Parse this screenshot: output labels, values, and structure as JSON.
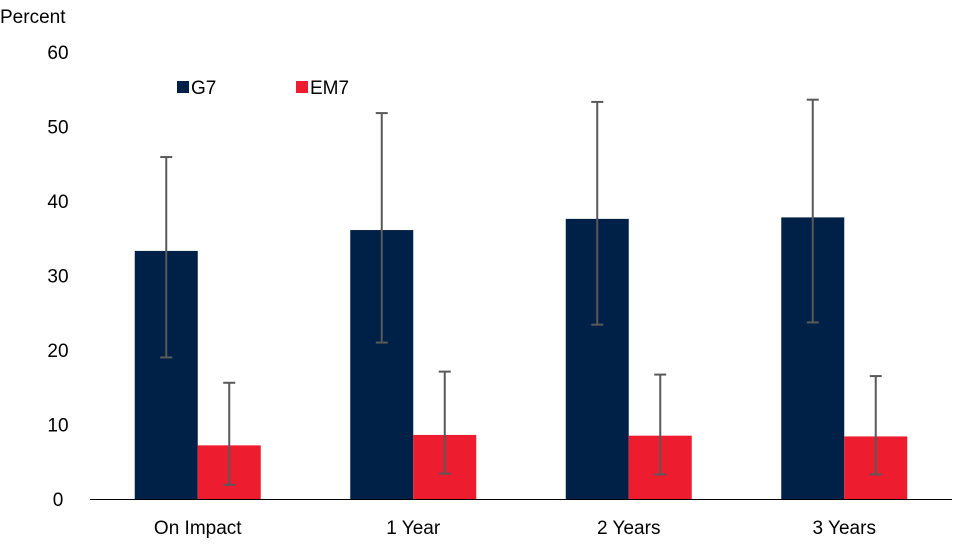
{
  "chart_data": {
    "type": "bar",
    "title": "",
    "ylabel": "Percent",
    "xlabel": "",
    "ylim": [
      0,
      60
    ],
    "yticks": [
      0,
      10,
      20,
      30,
      40,
      50,
      60
    ],
    "categories": [
      "On Impact",
      "1 Year",
      "2 Years",
      "3 Years"
    ],
    "series": [
      {
        "name": "G7",
        "color": "#002147",
        "values": [
          33.3,
          36.1,
          37.6,
          37.8
        ],
        "error_low": [
          19.0,
          21.0,
          23.4,
          23.7
        ],
        "error_high": [
          45.9,
          51.8,
          53.3,
          53.6
        ]
      },
      {
        "name": "EM7",
        "color": "#ED1C2E",
        "values": [
          7.2,
          8.6,
          8.5,
          8.4
        ],
        "error_low": [
          1.9,
          3.4,
          3.3,
          3.3
        ],
        "error_high": [
          15.6,
          17.1,
          16.7,
          16.5
        ]
      }
    ],
    "error_bar_color": "#595959",
    "legend_position": "top-left",
    "grid": false
  }
}
